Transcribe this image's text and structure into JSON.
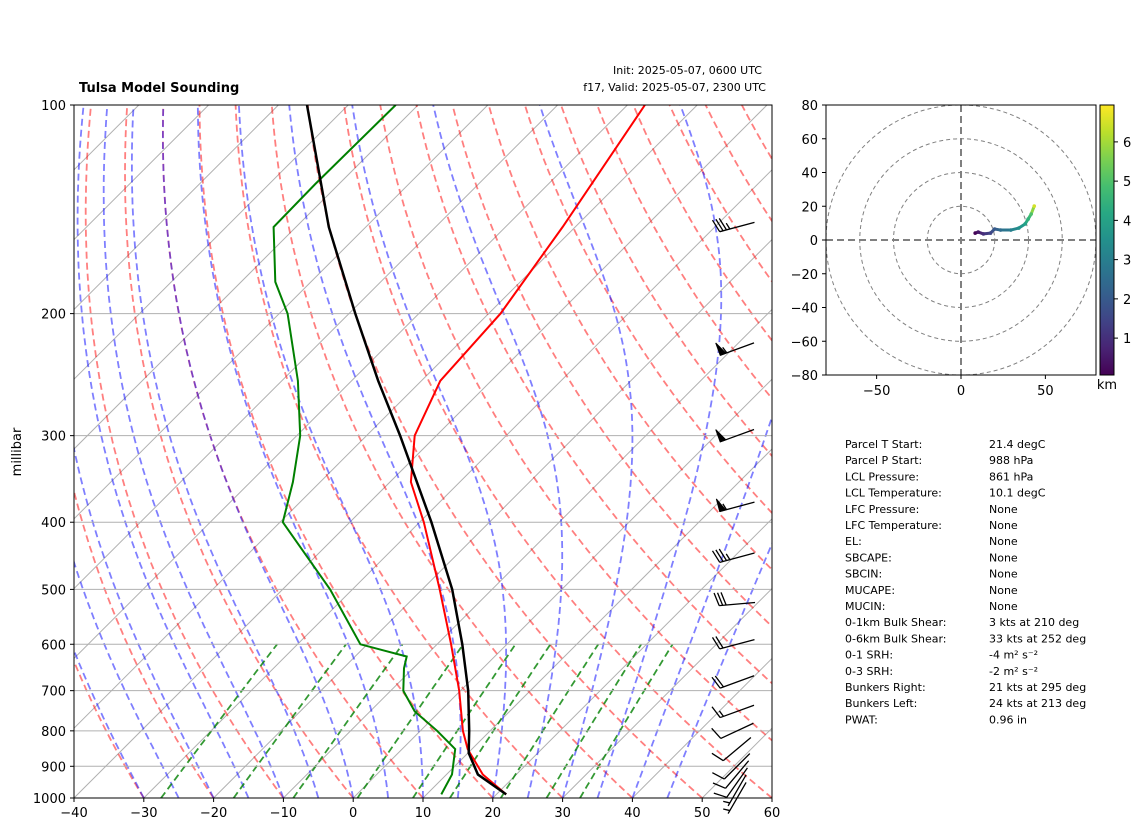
{
  "chart_data": [
    {
      "type": "skewt",
      "title": "Tulsa Model Sounding",
      "init_label": "Init: 2025-05-07, 0600 UTC",
      "valid_label": "f17, Valid: 2025-05-07, 2300 UTC",
      "ylabel": "millibar",
      "log_scale": true,
      "grid": true,
      "ylim": [
        1000,
        100
      ],
      "yticks": [
        100,
        200,
        300,
        400,
        500,
        600,
        700,
        800,
        900,
        1000
      ],
      "xlim": [
        -40,
        60
      ],
      "xticks": [
        {
          "value": -40,
          "label": "−40"
        },
        {
          "value": -30,
          "label": "−30"
        },
        {
          "value": -20,
          "label": "−20"
        },
        {
          "value": -10,
          "label": "−10"
        },
        0,
        10,
        20,
        30,
        40,
        50,
        60
      ],
      "series": [
        {
          "color": "#ff0000",
          "pressure": [
            988,
            925,
            850,
            800,
            700,
            600,
            500,
            400,
            350,
            300,
            250,
            200,
            150,
            100
          ],
          "values": [
            21.4,
            15.2,
            9.4,
            6.1,
            -0.2,
            -8,
            -17.5,
            -29.4,
            -37,
            -43.1,
            -47.3,
            -48.3,
            -51.8,
            -57.5
          ]
        },
        {
          "color": "#008000",
          "pressure": [
            988,
            925,
            850,
            800,
            750,
            700,
            650,
            625,
            600,
            500,
            400,
            350,
            300,
            250,
            200,
            180,
            150,
            130,
            100
          ],
          "values": [
            12.1,
            10.8,
            7.6,
            2.4,
            -3.6,
            -8.2,
            -11.3,
            -12.6,
            -21,
            -33.2,
            -49.6,
            -53.9,
            -59.5,
            -67.7,
            -78.8,
            -85.1,
            -93.2,
            -93.4,
            -93.2
          ]
        },
        {
          "color": "#000000",
          "pressure": [
            988,
            925,
            861,
            800,
            700,
            600,
            500,
            400,
            300,
            250,
            200,
            150,
            100
          ],
          "values": [
            21.4,
            14.5,
            10.1,
            7,
            1.1,
            -6.4,
            -15.7,
            -28.3,
            -45.2,
            -56.2,
            -69.1,
            -85.3,
            -105.9
          ]
        }
      ],
      "wind": {
        "color": "#000000",
        "pressure": [
          150,
          225,
          300,
          380,
          450,
          525,
          600,
          680,
          750,
          800,
          850,
          900,
          925,
          950,
          975,
          1000
        ],
        "speed": [
          35,
          55,
          50,
          55,
          35,
          30,
          20,
          20,
          15,
          10,
          10,
          10,
          10,
          10,
          5,
          5
        ],
        "direction": [
          255,
          250,
          250,
          255,
          255,
          265,
          255,
          250,
          250,
          245,
          230,
          225,
          220,
          215,
          210,
          210
        ]
      }
    },
    {
      "type": "hodograph",
      "xlim": [
        -80,
        80
      ],
      "ylim": [
        -80,
        80
      ],
      "xticks": [
        {
          "value": -50,
          "label": "−50"
        },
        0,
        50
      ],
      "yticks": [
        {
          "value": -80,
          "label": "−80"
        },
        {
          "value": -60,
          "label": "−60"
        },
        {
          "value": -40,
          "label": "−40"
        },
        {
          "value": -20,
          "label": "−20"
        },
        0,
        20,
        40,
        60,
        80
      ],
      "rings": [
        20,
        40,
        60,
        80
      ],
      "u": [
        8.4,
        10.2,
        13.3,
        17.5,
        19.9,
        23.5,
        29.5,
        34.3,
        38,
        39.8,
        41.6,
        43.4
      ],
      "v": [
        4.1,
        4.7,
        3.6,
        4.1,
        6.5,
        5.9,
        5.9,
        7.1,
        9.5,
        12.4,
        15.4,
        20.1
      ],
      "height": [
        0.1,
        0.5,
        1,
        1.5,
        2,
        2.5,
        3,
        3.5,
        4,
        4.5,
        5,
        6.5
      ],
      "colormap": "viridis",
      "clim": [
        0.06,
        6.94
      ],
      "cticks": [
        1,
        2,
        3,
        4,
        5,
        6
      ],
      "clabel": "km"
    }
  ],
  "parameters": {
    "rows": [
      [
        "Parcel T Start:",
        "21.4 degC"
      ],
      [
        "Parcel P Start:",
        "988 hPa"
      ],
      [
        "LCL Pressure:",
        "861 hPa"
      ],
      [
        "LCL Temperature:",
        "10.1 degC"
      ],
      [
        "LFC Pressure:",
        "None"
      ],
      [
        "LFC Temperature:",
        "None"
      ],
      [
        "EL:",
        "None"
      ],
      [
        "SBCAPE:",
        "None"
      ],
      [
        "SBCIN:",
        "None"
      ],
      [
        "MUCAPE:",
        "None"
      ],
      [
        "MUCIN:",
        "None"
      ],
      [
        "0-1km Bulk Shear:",
        "3 kts at 210 deg"
      ],
      [
        "0-6km Bulk Shear:",
        "33 kts at 252 deg"
      ],
      [
        "0-1 SRH:",
        "-4 m² s⁻²"
      ],
      [
        "0-3 SRH:",
        "-2 m² s⁻²"
      ],
      [
        "Bunkers Right:",
        "21 kts at 295 deg"
      ],
      [
        "Bunkers Left:",
        "24 kts at 213 deg"
      ],
      [
        "PWAT:",
        "0.96 in"
      ]
    ]
  }
}
